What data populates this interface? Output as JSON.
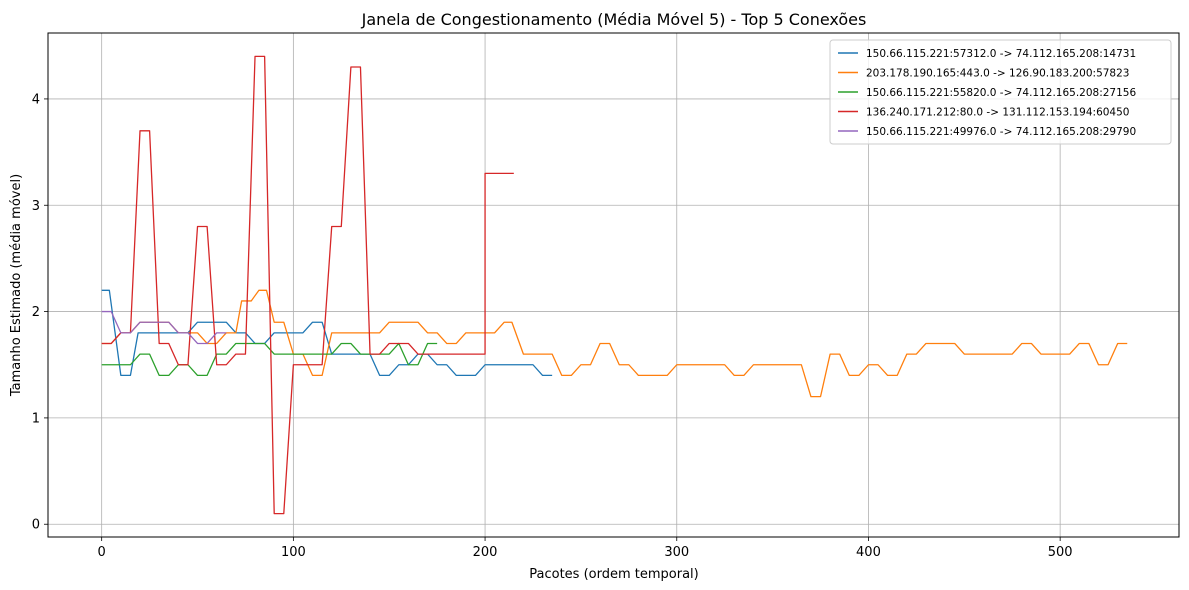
{
  "chart_data": {
    "type": "line",
    "title": "Janela de Congestionamento (Média Móvel 5) - Top 5 Conexões",
    "xlabel": "Pacotes (ordem temporal)",
    "ylabel": "Tamanho Estimado (média móvel)",
    "xlim": [
      -28,
      562
    ],
    "ylim": [
      -0.12,
      4.62
    ],
    "xticks": [
      0,
      100,
      200,
      300,
      400,
      500
    ],
    "yticks": [
      0,
      1,
      2,
      3,
      4
    ],
    "grid": true,
    "legend_position": "top-right",
    "series": [
      {
        "name": "150.66.115.221:57312.0 -> 74.112.165.208:14731",
        "color": "#1f77b4",
        "points": [
          [
            0,
            2.2
          ],
          [
            4,
            2.2
          ],
          [
            10,
            1.4
          ],
          [
            15,
            1.4
          ],
          [
            19,
            1.8
          ],
          [
            45,
            1.8
          ],
          [
            50,
            1.9
          ],
          [
            65,
            1.9
          ],
          [
            70,
            1.8
          ],
          [
            75,
            1.8
          ],
          [
            80,
            1.7
          ],
          [
            85,
            1.7
          ],
          [
            90,
            1.8
          ],
          [
            105,
            1.8
          ],
          [
            110,
            1.9
          ],
          [
            115,
            1.9
          ],
          [
            120,
            1.6
          ],
          [
            140,
            1.6
          ],
          [
            145,
            1.4
          ],
          [
            150,
            1.4
          ],
          [
            155,
            1.5
          ],
          [
            160,
            1.5
          ],
          [
            165,
            1.6
          ],
          [
            170,
            1.6
          ],
          [
            175,
            1.5
          ],
          [
            180,
            1.5
          ],
          [
            185,
            1.4
          ],
          [
            195,
            1.4
          ],
          [
            200,
            1.5
          ],
          [
            225,
            1.5
          ],
          [
            230,
            1.4
          ],
          [
            235,
            1.4
          ]
        ]
      },
      {
        "name": "203.178.190.165:443.0 -> 126.90.183.200:57823",
        "color": "#ff7f0e",
        "points": [
          [
            0,
            1.7
          ],
          [
            5,
            1.7
          ],
          [
            10,
            1.8
          ],
          [
            15,
            1.8
          ],
          [
            20,
            1.9
          ],
          [
            35,
            1.9
          ],
          [
            40,
            1.8
          ],
          [
            50,
            1.8
          ],
          [
            55,
            1.7
          ],
          [
            60,
            1.7
          ],
          [
            65,
            1.8
          ],
          [
            70,
            1.8
          ],
          [
            73,
            2.1
          ],
          [
            78,
            2.1
          ],
          [
            82,
            2.2
          ],
          [
            86,
            2.2
          ],
          [
            90,
            1.9
          ],
          [
            95,
            1.9
          ],
          [
            100,
            1.6
          ],
          [
            105,
            1.6
          ],
          [
            110,
            1.4
          ],
          [
            115,
            1.4
          ],
          [
            120,
            1.8
          ],
          [
            145,
            1.8
          ],
          [
            150,
            1.9
          ],
          [
            165,
            1.9
          ],
          [
            170,
            1.8
          ],
          [
            175,
            1.8
          ],
          [
            180,
            1.7
          ],
          [
            185,
            1.7
          ],
          [
            190,
            1.8
          ],
          [
            205,
            1.8
          ],
          [
            210,
            1.9
          ],
          [
            214,
            1.9
          ],
          [
            220,
            1.6
          ],
          [
            235,
            1.6
          ],
          [
            240,
            1.4
          ],
          [
            245,
            1.4
          ],
          [
            250,
            1.5
          ],
          [
            255,
            1.5
          ],
          [
            260,
            1.7
          ],
          [
            265,
            1.7
          ],
          [
            270,
            1.5
          ],
          [
            275,
            1.5
          ],
          [
            280,
            1.4
          ],
          [
            295,
            1.4
          ],
          [
            300,
            1.5
          ],
          [
            325,
            1.5
          ],
          [
            330,
            1.4
          ],
          [
            335,
            1.4
          ],
          [
            340,
            1.5
          ],
          [
            365,
            1.5
          ],
          [
            370,
            1.2
          ],
          [
            375,
            1.2
          ],
          [
            380,
            1.6
          ],
          [
            385,
            1.6
          ],
          [
            390,
            1.4
          ],
          [
            395,
            1.4
          ],
          [
            400,
            1.5
          ],
          [
            405,
            1.5
          ],
          [
            410,
            1.4
          ],
          [
            415,
            1.4
          ],
          [
            420,
            1.6
          ],
          [
            425,
            1.6
          ],
          [
            430,
            1.7
          ],
          [
            445,
            1.7
          ],
          [
            450,
            1.6
          ],
          [
            475,
            1.6
          ],
          [
            480,
            1.7
          ],
          [
            485,
            1.7
          ],
          [
            490,
            1.6
          ],
          [
            505,
            1.6
          ],
          [
            510,
            1.7
          ],
          [
            515,
            1.7
          ],
          [
            520,
            1.5
          ],
          [
            525,
            1.5
          ],
          [
            530,
            1.7
          ],
          [
            535,
            1.7
          ]
        ]
      },
      {
        "name": "150.66.115.221:55820.0 -> 74.112.165.208:27156",
        "color": "#2ca02c",
        "points": [
          [
            0,
            1.5
          ],
          [
            15,
            1.5
          ],
          [
            20,
            1.6
          ],
          [
            25,
            1.6
          ],
          [
            30,
            1.4
          ],
          [
            35,
            1.4
          ],
          [
            40,
            1.5
          ],
          [
            45,
            1.5
          ],
          [
            50,
            1.4
          ],
          [
            55,
            1.4
          ],
          [
            60,
            1.6
          ],
          [
            65,
            1.6
          ],
          [
            70,
            1.7
          ],
          [
            85,
            1.7
          ],
          [
            90,
            1.6
          ],
          [
            120,
            1.6
          ],
          [
            125,
            1.7
          ],
          [
            130,
            1.7
          ],
          [
            135,
            1.6
          ],
          [
            150,
            1.6
          ],
          [
            155,
            1.7
          ],
          [
            160,
            1.5
          ],
          [
            165,
            1.5
          ],
          [
            170,
            1.7
          ],
          [
            175,
            1.7
          ]
        ]
      },
      {
        "name": "136.240.171.212:80.0 -> 131.112.153.194:60450",
        "color": "#d62728",
        "points": [
          [
            0,
            1.7
          ],
          [
            5,
            1.7
          ],
          [
            10,
            1.8
          ],
          [
            15,
            1.8
          ],
          [
            20,
            3.7
          ],
          [
            25,
            3.7
          ],
          [
            30,
            1.7
          ],
          [
            35,
            1.7
          ],
          [
            40,
            1.5
          ],
          [
            45,
            1.5
          ],
          [
            50,
            2.8
          ],
          [
            55,
            2.8
          ],
          [
            60,
            1.5
          ],
          [
            65,
            1.5
          ],
          [
            70,
            1.6
          ],
          [
            75,
            1.6
          ],
          [
            80,
            4.4
          ],
          [
            85,
            4.4
          ],
          [
            90,
            0.1
          ],
          [
            95,
            0.1
          ],
          [
            100,
            1.5
          ],
          [
            115,
            1.5
          ],
          [
            120,
            2.8
          ],
          [
            125,
            2.8
          ],
          [
            130,
            4.3
          ],
          [
            135,
            4.3
          ],
          [
            140,
            1.6
          ],
          [
            145,
            1.6
          ],
          [
            150,
            1.7
          ],
          [
            160,
            1.7
          ],
          [
            165,
            1.6
          ],
          [
            200,
            1.6
          ],
          [
            200,
            3.3
          ],
          [
            215,
            3.3
          ]
        ]
      },
      {
        "name": "150.66.115.221:49976.0 -> 74.112.165.208:29790",
        "color": "#9467bd",
        "points": [
          [
            0,
            2.0
          ],
          [
            5,
            2.0
          ],
          [
            10,
            1.8
          ],
          [
            15,
            1.8
          ],
          [
            20,
            1.9
          ],
          [
            35,
            1.9
          ],
          [
            40,
            1.8
          ],
          [
            45,
            1.8
          ],
          [
            50,
            1.7
          ],
          [
            55,
            1.7
          ],
          [
            60,
            1.8
          ],
          [
            65,
            1.8
          ]
        ]
      }
    ]
  }
}
